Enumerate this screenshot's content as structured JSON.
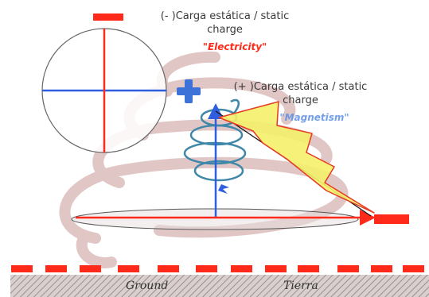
{
  "labels": {
    "negative_charge_line1": "(- )Carga estática / static",
    "negative_charge_line2": "charge",
    "electricity": "\"Electricity\"",
    "positive_charge_line1": "(+ )Carga estática / static",
    "positive_charge_line2": "charge",
    "magnetism": "\"Magnetism\"",
    "ground_en": "Ground",
    "ground_es": "Tierra"
  },
  "colors": {
    "red": "#ff2a1a",
    "blue": "#2f5fe0",
    "spiral": "#c89a98",
    "coil": "#3f87a8",
    "lightning_fill": "#f4f06a",
    "lightning_edge": "#e63a22",
    "electricity_text": "#ff2a1a",
    "magnetism_text": "#5b8fe8"
  }
}
